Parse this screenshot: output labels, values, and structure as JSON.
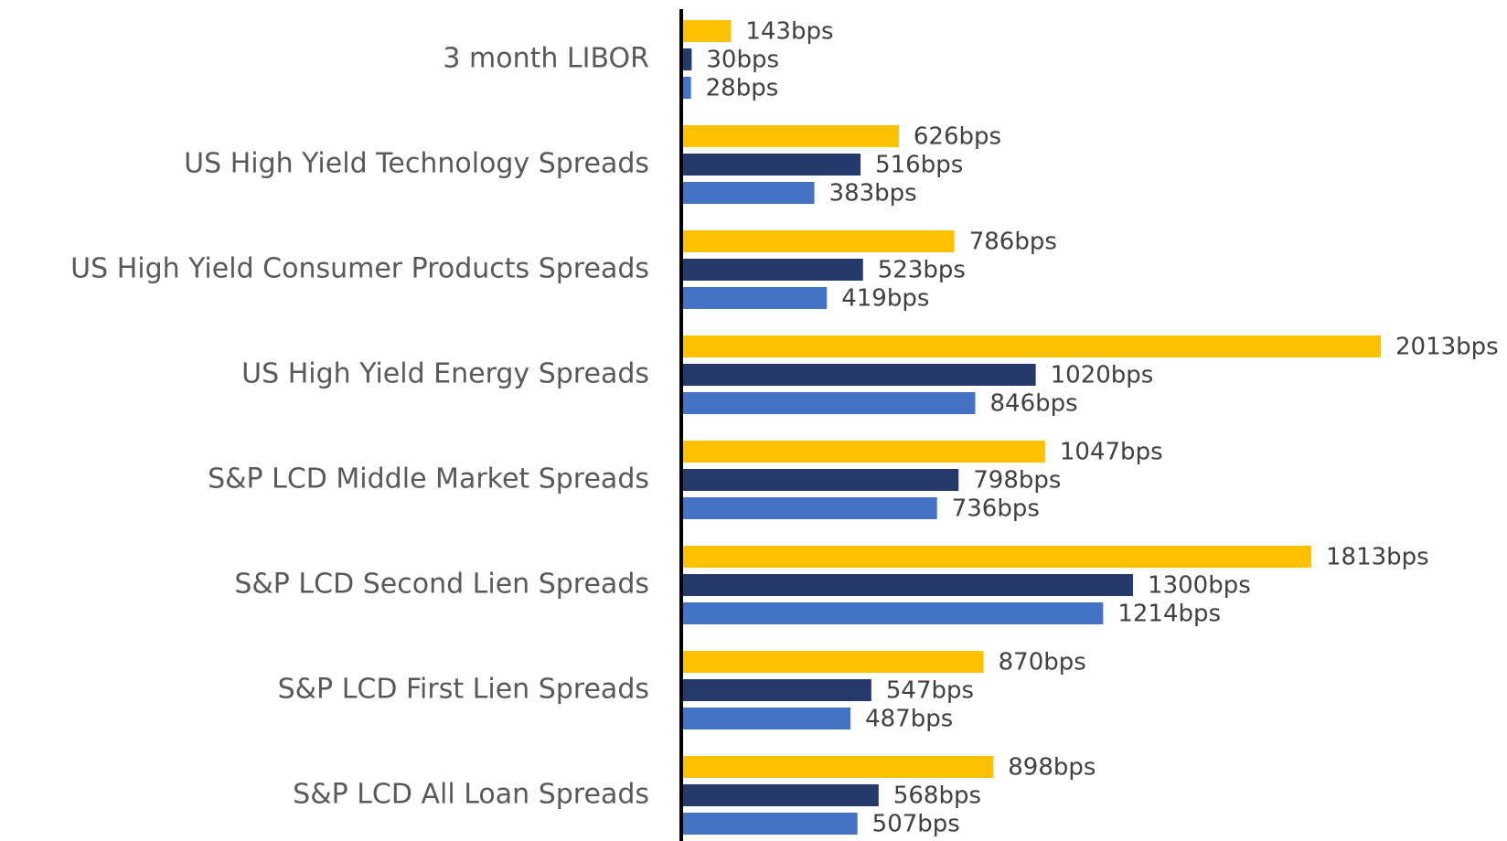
{
  "chart_data": {
    "type": "bar",
    "orientation": "horizontal",
    "categories": [
      "3 month LIBOR",
      "US High Yield Technology Spreads",
      "US High Yield Consumer Products Spreads",
      "US High Yield Energy Spreads",
      "S&P LCD Middle Market Spreads",
      "S&P LCD Second Lien Spreads",
      "S&P LCD First Lien Spreads",
      "S&P LCD All Loan Spreads"
    ],
    "series": [
      {
        "color": "#FFC000",
        "values": [
          143,
          626,
          786,
          2013,
          1047,
          1813,
          870,
          898
        ],
        "value_labels": [
          "143bps",
          "626bps",
          "786bps",
          "2013bps",
          "1047bps",
          "1813bps",
          "870bps",
          "898bps"
        ]
      },
      {
        "color": "#253A6B",
        "values": [
          30,
          516,
          523,
          1020,
          798,
          1300,
          547,
          568
        ],
        "value_labels": [
          "30bps",
          "516bps",
          "523bps",
          "1020bps",
          "798bps",
          "1300bps",
          "547bps",
          "568bps"
        ]
      },
      {
        "color": "#4472C4",
        "values": [
          28,
          383,
          419,
          846,
          736,
          1214,
          487,
          507
        ],
        "value_labels": [
          "28bps",
          "383bps",
          "419bps",
          "846bps",
          "736bps",
          "1214bps",
          "487bps",
          "507bps"
        ]
      }
    ]
  }
}
